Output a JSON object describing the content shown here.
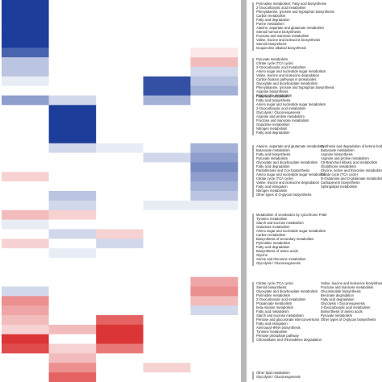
{
  "chart_data": {
    "type": "heatmap",
    "vlim": [
      -1,
      1
    ],
    "low_color": "#d81e1e",
    "mid_color": "#ffffff",
    "high_color": "#1c3d9a",
    "values": [
      [
        1,
        0,
        0,
        0,
        0
      ],
      [
        1,
        0,
        0,
        0,
        0
      ],
      [
        1,
        0,
        0,
        0,
        0
      ],
      [
        1,
        0,
        0,
        0,
        0
      ],
      [
        1,
        0,
        0,
        0,
        0
      ],
      [
        0.8,
        0,
        0,
        0,
        -0.1
      ],
      [
        0.3,
        0,
        0,
        0,
        -0.3
      ],
      [
        0.3,
        0,
        0,
        0,
        0.2
      ],
      [
        0.1,
        0,
        0,
        0.9,
        0.3
      ],
      [
        0,
        0,
        0,
        0.9,
        0.4
      ],
      [
        0.5,
        0.2,
        0,
        0.4,
        0
      ],
      [
        0,
        1,
        0,
        0,
        0
      ],
      [
        0,
        1,
        0,
        0,
        0
      ],
      [
        0,
        1,
        0,
        0,
        0
      ],
      [
        0,
        1,
        0,
        0,
        0
      ],
      [
        0,
        0.2,
        0.1,
        0,
        0.4
      ],
      [
        0,
        0,
        0,
        0.2,
        0.5
      ],
      [
        0,
        0,
        0,
        0,
        0.6
      ],
      [
        -0.2,
        0,
        0,
        0,
        0.5
      ],
      [
        0,
        0,
        0,
        0,
        0.4
      ],
      [
        0,
        0.3,
        0,
        0,
        0.3
      ],
      [
        0,
        0.2,
        0,
        0.1,
        0.1
      ],
      [
        -0.3,
        -0.2,
        0,
        0,
        0
      ],
      [
        0.1,
        0,
        0,
        0,
        0
      ],
      [
        0,
        0.2,
        -0.2,
        0,
        0
      ],
      [
        -0.2,
        0,
        0.2,
        0,
        0
      ],
      [
        0,
        0.1,
        0,
        0,
        0
      ],
      [
        0,
        0,
        0,
        0,
        0
      ],
      [
        0,
        0,
        0,
        0,
        0
      ],
      [
        0,
        0,
        0,
        0,
        -0.4
      ],
      [
        0.2,
        0,
        0,
        0,
        -0.5
      ],
      [
        -0.5,
        0,
        0,
        0,
        -0.3
      ],
      [
        -0.4,
        0,
        0,
        0,
        0.2
      ],
      [
        -0.3,
        0,
        -0.7,
        0,
        0
      ],
      [
        -0.2,
        -0.3,
        -0.9,
        0,
        0
      ],
      [
        -0.9,
        0,
        -0.9,
        0,
        0
      ],
      [
        -0.8,
        -0.2,
        -0.6,
        0,
        0
      ],
      [
        0,
        -0.3,
        0,
        0,
        0
      ],
      [
        0,
        -0.5,
        0,
        -0.2,
        0
      ],
      [
        0,
        -0.7,
        0,
        0,
        0
      ]
    ],
    "annotations": [
      [
        [
          "Pyrimidine metabolism; Fatty acid biosynthesis",
          "2-Oxocarboxylic acid metabolism",
          "Phenylalanine, tyrosine and tryptophan biosynthesis",
          "Carbon metabolism",
          "Fatty acid degradation",
          "Purine metabolism",
          "Alanine, aspartate and glutamate metabolism",
          "Steroid hormone biosynthesis",
          "Fructose and mannose metabolism",
          "Valine, leucine and isoleucine biosynthesis",
          "Steroid biosynthesis",
          "Isoquinoline alkaloid biosynthesis"
        ]
      ],
      [
        [
          "Pyruvate metabolism",
          "Citrate cycle (TCA cycle)",
          "2-Oxocarboxylic acid metabolism",
          "Amino sugar and nucleotide sugar metabolism",
          "Valine, leucine and isoleucine degradation",
          "Carbon fixation pathways in prokaryotes",
          "Glyoxylate and dicarboxylate metabolism",
          "Phenylalanine, tyrosine and tryptophan biosynthesis",
          "Arginine biosynthesis",
          "Propanoate metabolism"
        ]
      ],
      [
        [
          "Fatty acid metabolism",
          "Fatty acid biosynthesis",
          "Amino sugar and nucleotide sugar metabolism",
          "2-Oxocarboxylic acid metabolism",
          "Glycolysis / Gluconeogenesis",
          "Arginine and proline metabolism",
          "Fructose and mannose metabolism",
          "Galactose metabolism",
          "Nitrogen metabolism",
          "Fatty acid degradation"
        ]
      ],
      [
        [
          "Alanine, aspartate and glutamate metabolism",
          "Butanoate metabolism",
          "Fatty acid biosynthesis",
          "Pyruvate metabolism",
          "Glyoxylate and dicarboxylate metabolism",
          "Fatty acid degradation",
          "Pantothenate and CoA biosynthesis",
          "Amino sugar and nucleotide sugar metabolism",
          "Citrate cycle (TCA cycle)",
          "Valine, leucine and isoleucine degradation",
          "Fatty acid elongation",
          "Nitrogen metabolism",
          "Other types of O-glycan biosynthesis"
        ],
        [
          "Synthesis and degradation of ketone bodies",
          "Butanoate metabolism",
          "Arginine biosynthesis",
          "Arginine and proline metabolism",
          "C5-Branched dibasic acid metabolism",
          "Glutathione metabolism",
          "Glycine, serine and threonine metabolism",
          "Citrate cycle (TCA cycle)",
          "D-Glutamine and D-glutamate metabolism",
          "Carbapenem biosynthesis",
          "Sphingolipid metabolism"
        ]
      ],
      [
        [
          "Metabolism of xenobiotics by cytochrome P450",
          "Tyrosine metabolism",
          "Starch and sucrose metabolism",
          "Galactose metabolism",
          "Amino sugar and nucleotide sugar metabolism",
          "Carbon metabolism",
          "Biosynthesis of secondary metabolites",
          "Pyrimidine metabolism",
          "Fatty acid degradation",
          "Biosynthesis of amino acids",
          "Glycine",
          "Serine and threonine metabolism",
          "Glycolysis / Gluconeogenesis"
        ]
      ],
      [
        [
          "Citrate cycle (TCA cycle)",
          "Steroid biosynthesis",
          "Glyoxylate and dicarboxylate metabolism",
          "Pyrimidine metabolism",
          "2-Oxocarboxylic acid metabolism",
          "Propanoate metabolism",
          "beta-Alanine metabolism",
          "Fatty acid metabolism",
          "Starch and sucrose metabolism",
          "Pentose and glucuronate interconversions",
          "Fatty acid elongation",
          "Aminoacyl-tRNA biosynthesis",
          "Tyrosine metabolism",
          "Pentose phosphate pathway",
          "Chloroalkane and chloroalkene degradation"
        ],
        [
          "Valine, leucine and isoleucine biosynthesis",
          "Fructose and mannose metabolism",
          "Glucosinolate biosynthesis",
          "Benzoate degradation",
          "Fatty acid degradation",
          "Glycolysis / Gluconeogenesis",
          "2-Oxocarboxylic acid metabolism",
          "Biosynthesis of amino acids",
          "Pyruvate metabolism",
          "Other types of O-glycan biosynthesis"
        ]
      ],
      [
        [
          "Other lipid metabolism",
          "Glycolysis / Gluconeogenesis"
        ]
      ]
    ]
  }
}
